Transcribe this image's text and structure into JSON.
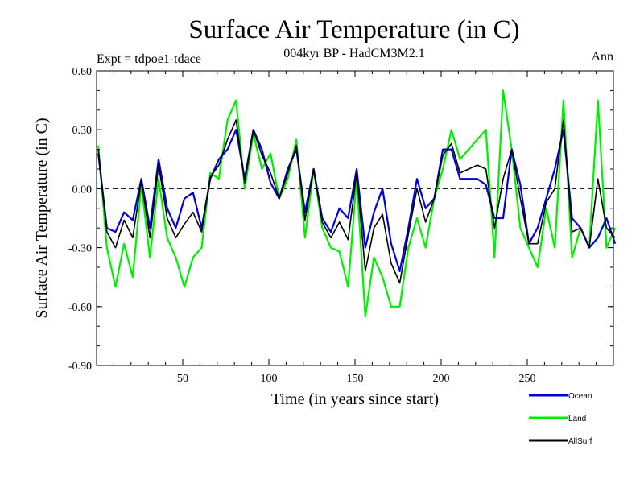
{
  "chart_data": {
    "type": "line",
    "title": "Surface Air Temperature (in C)",
    "subtitle": "004kyr BP - HadCM3M2.1",
    "expt_label": "Expt = tdpoe1-tdace",
    "season_label": "Ann",
    "xlabel": "Time (in years since start)",
    "ylabel": "Surface Air Temperature (in C)",
    "xlim": [
      0,
      300
    ],
    "ylim": [
      -0.9,
      0.6
    ],
    "xticks": [
      50,
      100,
      150,
      200,
      250
    ],
    "xtick_labels": [
      "50",
      "100",
      "150",
      "200",
      "250"
    ],
    "yticks": [
      0.6,
      0.3,
      0.0,
      -0.3,
      -0.6,
      -0.9
    ],
    "ytick_labels": [
      "0.60",
      "0.30",
      "0.00",
      "-0.30",
      "-0.60",
      "-0.90"
    ],
    "reference_line": 0.0,
    "colors": {
      "Ocean": "#0000dd",
      "Land": "#00ee00",
      "AllSurf": "#000000"
    },
    "legend": [
      {
        "name": "Ocean",
        "color": "#0000dd"
      },
      {
        "name": "Land",
        "color": "#00ee00"
      },
      {
        "name": "AllSurf",
        "color": "#000000"
      }
    ],
    "x_start": 1,
    "x_step": 5,
    "series": [
      {
        "name": "Ocean",
        "values": [
          0.18,
          -0.2,
          -0.22,
          -0.12,
          -0.16,
          0.05,
          -0.2,
          0.15,
          -0.1,
          -0.2,
          -0.05,
          -0.02,
          -0.2,
          0.05,
          0.15,
          0.2,
          0.3,
          0.05,
          0.3,
          0.2,
          0.03,
          -0.05,
          0.1,
          0.2,
          -0.12,
          0.1,
          -0.15,
          -0.22,
          -0.1,
          -0.15,
          0.1,
          -0.3,
          -0.12,
          0.0,
          -0.28,
          -0.42,
          -0.2,
          0.05,
          -0.1,
          -0.05,
          0.2,
          0.2,
          0.05,
          0.05,
          0.05,
          0.02,
          -0.15,
          -0.15,
          0.2,
          0.02,
          -0.28,
          -0.2,
          -0.05,
          0.1,
          0.3,
          -0.15,
          -0.2,
          -0.3,
          -0.25,
          -0.15,
          -0.28
        ]
      },
      {
        "name": "Land",
        "values": [
          0.22,
          -0.3,
          -0.5,
          -0.28,
          -0.45,
          0.02,
          -0.35,
          0.05,
          -0.25,
          -0.35,
          -0.5,
          -0.35,
          -0.3,
          0.08,
          0.05,
          0.35,
          0.45,
          0.0,
          0.28,
          0.1,
          0.18,
          -0.05,
          0.05,
          0.25,
          -0.25,
          0.1,
          -0.2,
          -0.3,
          -0.32,
          -0.5,
          0.05,
          -0.65,
          -0.35,
          -0.45,
          -0.6,
          -0.6,
          -0.3,
          -0.15,
          -0.3,
          -0.05,
          0.1,
          0.3,
          0.15,
          0.2,
          0.25,
          0.3,
          -0.35,
          0.5,
          0.2,
          -0.2,
          -0.3,
          -0.4,
          -0.1,
          -0.3,
          0.45,
          -0.35,
          -0.2,
          -0.3,
          0.45,
          -0.3,
          -0.2
        ]
      },
      {
        "name": "AllSurf",
        "values": [
          0.2,
          -0.22,
          -0.3,
          -0.16,
          -0.25,
          0.04,
          -0.25,
          0.12,
          -0.15,
          -0.25,
          -0.18,
          -0.12,
          -0.22,
          0.06,
          0.12,
          0.25,
          0.35,
          0.03,
          0.3,
          0.17,
          0.08,
          -0.05,
          0.08,
          0.22,
          -0.16,
          0.1,
          -0.17,
          -0.25,
          -0.17,
          -0.26,
          0.08,
          -0.42,
          -0.2,
          -0.13,
          -0.38,
          -0.48,
          -0.23,
          0.0,
          -0.17,
          -0.05,
          0.17,
          0.23,
          0.08,
          0.1,
          0.12,
          0.1,
          -0.2,
          0.05,
          0.2,
          -0.05,
          -0.28,
          -0.28,
          -0.07,
          0.0,
          0.35,
          -0.22,
          -0.2,
          -0.3,
          0.05,
          -0.2,
          -0.25
        ]
      }
    ]
  }
}
